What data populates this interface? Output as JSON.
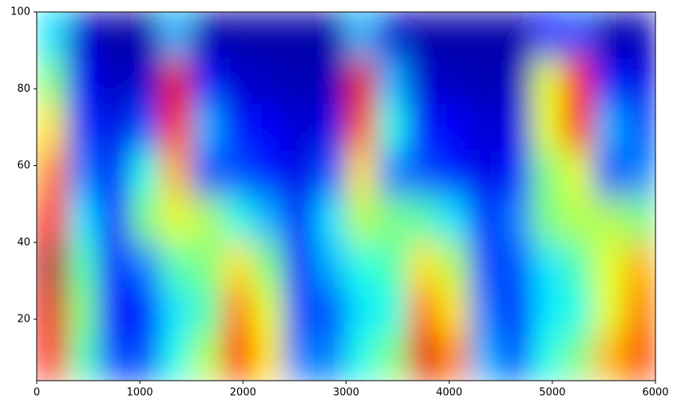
{
  "chart_data": {
    "type": "heatmap",
    "colormap": "jet",
    "x": [
      150,
      450,
      750,
      1050,
      1350,
      1650,
      1950,
      2250,
      2550,
      2850,
      3150,
      3450,
      3750,
      4050,
      4350,
      4650,
      4950,
      5250,
      5550,
      5850
    ],
    "y": [
      10,
      22,
      34,
      46,
      58,
      70,
      82,
      94
    ],
    "z": [
      [
        0.85,
        0.45,
        0.2,
        0.2,
        0.4,
        0.55,
        0.85,
        0.65,
        0.25,
        0.25,
        0.4,
        0.5,
        0.9,
        0.75,
        0.3,
        0.2,
        0.4,
        0.5,
        0.7,
        0.8
      ],
      [
        0.9,
        0.5,
        0.15,
        0.15,
        0.35,
        0.45,
        0.75,
        0.6,
        0.2,
        0.2,
        0.35,
        0.4,
        0.75,
        0.65,
        0.25,
        0.15,
        0.35,
        0.4,
        0.6,
        0.75
      ],
      [
        0.95,
        0.45,
        0.15,
        0.25,
        0.45,
        0.5,
        0.65,
        0.5,
        0.15,
        0.3,
        0.4,
        0.45,
        0.65,
        0.55,
        0.2,
        0.2,
        0.35,
        0.45,
        0.6,
        0.7
      ],
      [
        0.85,
        0.35,
        0.15,
        0.5,
        0.6,
        0.55,
        0.4,
        0.3,
        0.12,
        0.35,
        0.55,
        0.5,
        0.45,
        0.35,
        0.15,
        0.25,
        0.5,
        0.55,
        0.55,
        0.5
      ],
      [
        0.75,
        0.25,
        0.12,
        0.4,
        0.7,
        0.2,
        0.2,
        0.15,
        0.1,
        0.2,
        0.65,
        0.25,
        0.2,
        0.15,
        0.1,
        0.15,
        0.5,
        0.6,
        0.2,
        0.25
      ],
      [
        0.65,
        0.18,
        0.1,
        0.2,
        0.85,
        0.3,
        0.15,
        0.12,
        0.08,
        0.1,
        0.8,
        0.4,
        0.15,
        0.12,
        0.08,
        0.1,
        0.6,
        0.85,
        0.3,
        0.2
      ],
      [
        0.5,
        0.12,
        0.06,
        0.08,
        0.9,
        0.15,
        0.08,
        0.06,
        0.05,
        0.06,
        0.9,
        0.3,
        0.08,
        0.06,
        0.05,
        0.06,
        0.6,
        0.85,
        0.15,
        0.1
      ],
      [
        0.35,
        0.08,
        0.04,
        0.04,
        0.3,
        0.05,
        0.04,
        0.04,
        0.04,
        0.04,
        0.3,
        0.08,
        0.04,
        0.04,
        0.04,
        0.04,
        0.15,
        0.2,
        0.05,
        0.05
      ]
    ],
    "zlim": [
      0,
      1
    ],
    "xlim": [
      0,
      6000
    ],
    "xticks": [
      0,
      1000,
      2000,
      3000,
      4000,
      5000,
      6000
    ],
    "ylim": [
      4,
      100
    ],
    "yticks": [
      20,
      40,
      60,
      80,
      100
    ]
  }
}
